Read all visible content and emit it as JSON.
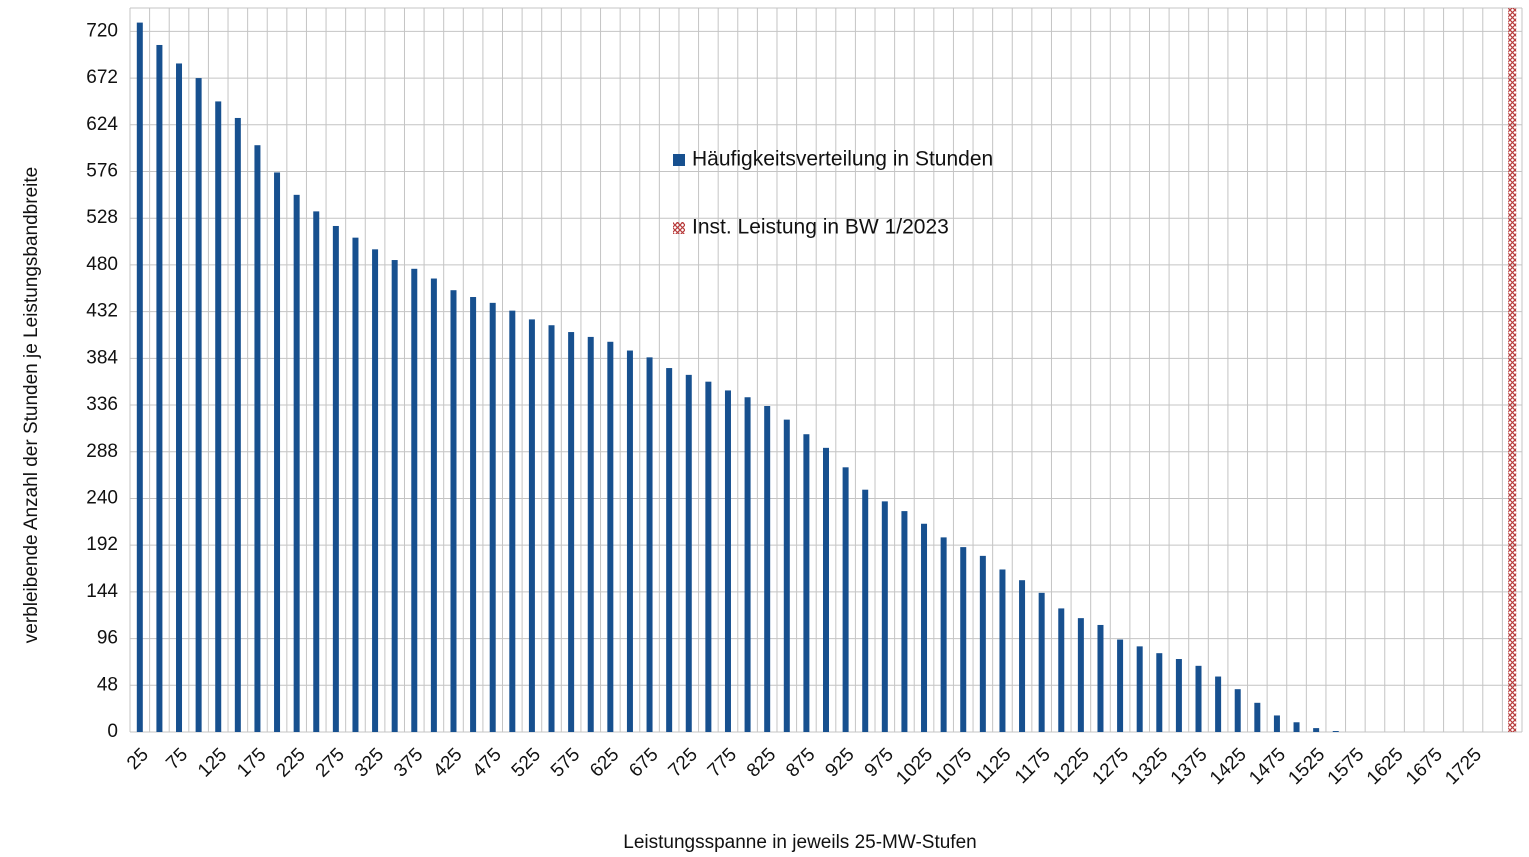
{
  "chart_data": {
    "type": "bar",
    "x_label": "Leistungsspanne in jeweils 25-MW-Stufen",
    "y_label": "verbleibende Anzahl der Stunden je Leistungsbandbreite",
    "categories": [
      "25",
      null,
      "75",
      null,
      "125",
      null,
      "175",
      null,
      "225",
      null,
      "275",
      null,
      "325",
      null,
      "375",
      null,
      "425",
      null,
      "475",
      null,
      "525",
      null,
      "575",
      null,
      "625",
      null,
      "675",
      null,
      "725",
      null,
      "775",
      null,
      "825",
      null,
      "875",
      null,
      "925",
      null,
      "975",
      null,
      "1025",
      null,
      "1075",
      null,
      "1125",
      null,
      "1175",
      null,
      "1225",
      null,
      "1275",
      null,
      "1325",
      null,
      "1375",
      null,
      "1425",
      null,
      "1475",
      null,
      "1525",
      null,
      "1575",
      null,
      "1625",
      null,
      "1675",
      null,
      "1725",
      null,
      null
    ],
    "series": [
      {
        "name": "Häufigkeitsverteilung in Stunden",
        "color": "#17508f",
        "values": [
          729,
          706,
          687,
          672,
          648,
          631,
          603,
          575,
          552,
          535,
          520,
          508,
          496,
          485,
          476,
          466,
          454,
          447,
          441,
          433,
          424,
          418,
          411,
          406,
          401,
          392,
          385,
          374,
          367,
          360,
          351,
          344,
          335,
          321,
          306,
          292,
          272,
          249,
          237,
          227,
          214,
          200,
          190,
          181,
          167,
          156,
          143,
          127,
          117,
          110,
          95,
          88,
          81,
          75,
          68,
          57,
          44,
          30,
          17,
          10,
          4,
          1,
          0,
          0,
          0,
          0,
          0,
          0,
          0,
          0,
          null
        ]
      },
      {
        "name": "Inst. Leistung in BW 1/2023",
        "color": "#b83c3c",
        "pattern": "crosshatch",
        "values": [
          null,
          null,
          null,
          null,
          null,
          null,
          null,
          null,
          null,
          null,
          null,
          null,
          null,
          null,
          null,
          null,
          null,
          null,
          null,
          null,
          null,
          null,
          null,
          null,
          null,
          null,
          null,
          null,
          null,
          null,
          null,
          null,
          null,
          null,
          null,
          null,
          null,
          null,
          null,
          null,
          null,
          null,
          null,
          null,
          null,
          null,
          null,
          null,
          null,
          null,
          null,
          null,
          null,
          null,
          null,
          null,
          null,
          null,
          null,
          null,
          null,
          null,
          null,
          null,
          null,
          null,
          null,
          null,
          null,
          null,
          744
        ]
      }
    ],
    "ylim": [
      0,
      744
    ],
    "yticks": [
      0,
      48,
      96,
      144,
      192,
      240,
      288,
      336,
      384,
      432,
      480,
      528,
      576,
      624,
      672,
      720
    ],
    "grid": true
  }
}
